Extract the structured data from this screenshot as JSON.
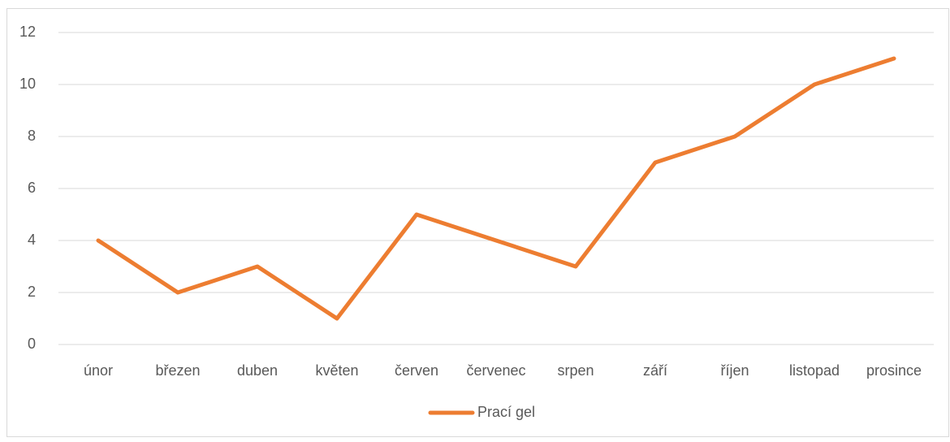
{
  "chart_data": {
    "type": "line",
    "categories": [
      "únor",
      "březen",
      "duben",
      "květen",
      "červen",
      "červenec",
      "srpen",
      "září",
      "říjen",
      "listopad",
      "prosince"
    ],
    "series": [
      {
        "name": "Prací gel",
        "color": "#ed7d31",
        "values": [
          4,
          2,
          3,
          1,
          5,
          4,
          3,
          7,
          8,
          10,
          11
        ]
      }
    ],
    "ylim": [
      0,
      12
    ],
    "yticks": [
      0,
      2,
      4,
      6,
      8,
      10,
      12
    ],
    "grid": true,
    "legend": "bottom"
  }
}
